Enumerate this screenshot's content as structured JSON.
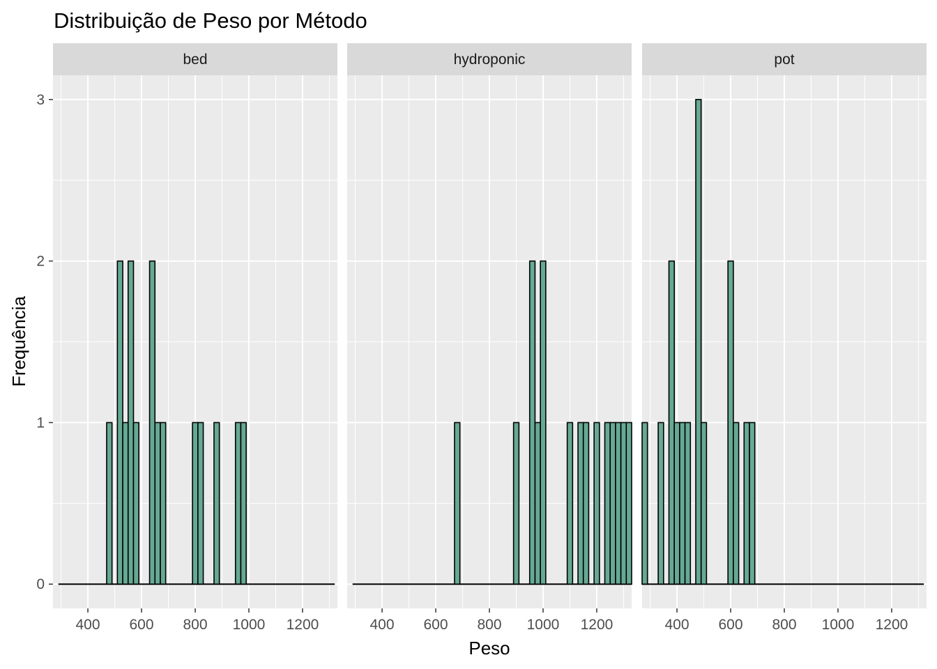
{
  "chart_data": {
    "type": "bar",
    "title": "Distribuição de Peso por Método",
    "xlabel": "Peso",
    "ylabel": "Frequência",
    "xlim": [
      270,
      1330
    ],
    "ylim": [
      -0.15,
      3.15
    ],
    "x_ticks": [
      400,
      600,
      800,
      1000,
      1200
    ],
    "y_ticks": [
      0,
      1,
      2,
      3
    ],
    "bin_width": 20,
    "bar_fill": "#66A994",
    "bar_outline": "#000000",
    "panel_background": "#EBEBEB",
    "strip_background": "#D9D9D9",
    "grid": true,
    "legend": "none",
    "panels": [
      {
        "name": "bed",
        "line_range": [
          290,
          1320
        ],
        "bins": [
          {
            "x": 480,
            "count": 1
          },
          {
            "x": 520,
            "count": 2
          },
          {
            "x": 540,
            "count": 1
          },
          {
            "x": 560,
            "count": 2
          },
          {
            "x": 580,
            "count": 1
          },
          {
            "x": 640,
            "count": 2
          },
          {
            "x": 660,
            "count": 1
          },
          {
            "x": 680,
            "count": 1
          },
          {
            "x": 800,
            "count": 1
          },
          {
            "x": 820,
            "count": 1
          },
          {
            "x": 880,
            "count": 1
          },
          {
            "x": 960,
            "count": 1
          },
          {
            "x": 980,
            "count": 1
          }
        ]
      },
      {
        "name": "hydroponic",
        "line_range": [
          290,
          1330
        ],
        "bins": [
          {
            "x": 680,
            "count": 1
          },
          {
            "x": 900,
            "count": 1
          },
          {
            "x": 960,
            "count": 2
          },
          {
            "x": 980,
            "count": 1
          },
          {
            "x": 1000,
            "count": 2
          },
          {
            "x": 1100,
            "count": 1
          },
          {
            "x": 1140,
            "count": 1
          },
          {
            "x": 1160,
            "count": 1
          },
          {
            "x": 1200,
            "count": 1
          },
          {
            "x": 1240,
            "count": 1
          },
          {
            "x": 1260,
            "count": 1
          },
          {
            "x": 1280,
            "count": 1
          },
          {
            "x": 1300,
            "count": 1
          },
          {
            "x": 1320,
            "count": 1
          }
        ]
      },
      {
        "name": "pot",
        "line_range": [
          270,
          1320
        ],
        "bins": [
          {
            "x": 280,
            "count": 1
          },
          {
            "x": 340,
            "count": 1
          },
          {
            "x": 380,
            "count": 2
          },
          {
            "x": 400,
            "count": 1
          },
          {
            "x": 420,
            "count": 1
          },
          {
            "x": 440,
            "count": 1
          },
          {
            "x": 480,
            "count": 3
          },
          {
            "x": 500,
            "count": 1
          },
          {
            "x": 600,
            "count": 2
          },
          {
            "x": 620,
            "count": 1
          },
          {
            "x": 660,
            "count": 1
          },
          {
            "x": 680,
            "count": 1
          }
        ]
      }
    ]
  }
}
